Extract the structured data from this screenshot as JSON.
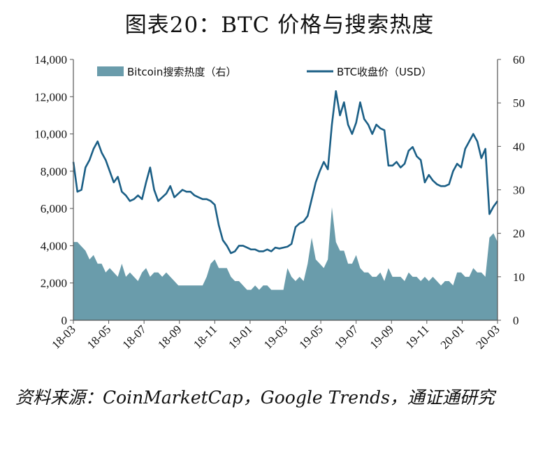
{
  "title": "图表20：BTC 价格与搜索热度",
  "source": "资料来源：CoinMarketCap，Google Trends，通证通研究",
  "chart_data": {
    "type": "area+line",
    "x_tick_labels": [
      "18-03",
      "18-05",
      "18-07",
      "18-09",
      "18-11",
      "19-01",
      "19-03",
      "19-05",
      "19-07",
      "19-09",
      "19-11",
      "20-01",
      "20-03"
    ],
    "ylim_left": [
      0,
      14000
    ],
    "yticks_left": [
      "0",
      "2,000",
      "4,000",
      "6,000",
      "8,000",
      "10,000",
      "12,000",
      "14,000"
    ],
    "ylim_right": [
      0,
      60
    ],
    "yticks_right": [
      "0",
      "10",
      "20",
      "30",
      "40",
      "50",
      "60"
    ],
    "series": [
      {
        "name": "Bitcoin搜索热度（右）",
        "type": "area",
        "axis": "right",
        "color": "#6a9cab",
        "values": [
          18,
          18,
          17,
          16,
          14,
          15,
          13,
          13,
          11,
          12,
          11,
          10,
          13,
          10,
          11,
          10,
          9,
          11,
          12,
          10,
          11,
          11,
          10,
          11,
          10,
          9,
          8,
          8,
          8,
          8,
          8,
          8,
          8,
          10,
          13,
          14,
          12,
          12,
          12,
          10,
          9,
          9,
          8,
          7,
          7,
          8,
          7,
          8,
          8,
          7,
          7,
          7,
          7,
          12,
          10,
          9,
          10,
          9,
          13,
          19,
          14,
          13,
          12,
          14,
          26,
          18,
          16,
          16,
          13,
          13,
          15,
          12,
          11,
          11,
          10,
          10,
          11,
          9,
          12,
          10,
          10,
          10,
          9,
          11,
          10,
          10,
          9,
          10,
          9,
          10,
          9,
          8,
          9,
          9,
          8,
          11,
          11,
          10,
          10,
          12,
          11,
          11,
          10,
          19,
          20,
          18
        ]
      },
      {
        "name": "BTC收盘价（USD）",
        "type": "line",
        "axis": "left",
        "color": "#1b5f86",
        "values": [
          8500,
          6900,
          7000,
          8200,
          8600,
          9200,
          9600,
          9000,
          8600,
          8000,
          7400,
          7700,
          6900,
          6700,
          6400,
          6500,
          6700,
          6500,
          7400,
          8200,
          7000,
          6400,
          6600,
          6800,
          7200,
          6600,
          6800,
          7000,
          6900,
          6900,
          6700,
          6600,
          6500,
          6500,
          6400,
          6200,
          5100,
          4300,
          4000,
          3600,
          3700,
          4000,
          4000,
          3900,
          3800,
          3800,
          3700,
          3700,
          3800,
          3700,
          3900,
          3850,
          3900,
          3950,
          4100,
          5000,
          5200,
          5300,
          5600,
          6500,
          7400,
          8000,
          8500,
          8100,
          10500,
          12300,
          11000,
          11700,
          10500,
          10000,
          10600,
          11700,
          10800,
          10500,
          10000,
          10500,
          10300,
          10200,
          8300,
          8300,
          8500,
          8200,
          8400,
          9100,
          9300,
          8800,
          8600,
          7400,
          7800,
          7500,
          7300,
          7200,
          7200,
          7300,
          8000,
          8400,
          8200,
          9200,
          9600,
          10000,
          9600,
          8700,
          9200,
          5700,
          6100,
          6400
        ]
      }
    ]
  },
  "colors": {
    "area": "#6a9cab",
    "line": "#1b5f86",
    "axis": "#555555"
  }
}
